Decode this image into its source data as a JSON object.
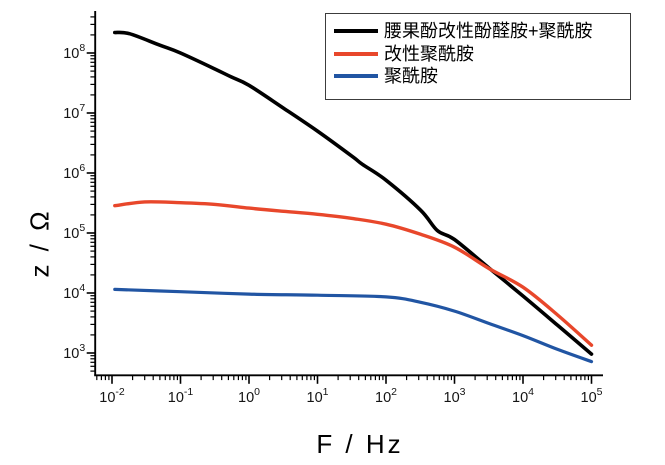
{
  "chart_data": {
    "type": "line",
    "title": "",
    "xlabel": "F / Hz",
    "ylabel": "z / Ω",
    "x_scale": "log",
    "y_scale": "log",
    "x_range_exp": [
      -2.24,
      5.16
    ],
    "y_range_exp": [
      2.64,
      8.67
    ],
    "x_major_ticks_exp": [
      -2,
      -1,
      0,
      1,
      2,
      3,
      4,
      5
    ],
    "y_major_ticks_exp": [
      3,
      4,
      5,
      6,
      7,
      8
    ],
    "grid": false,
    "legend_position": "top-right",
    "series": [
      {
        "name": "腰果酚改性酚醛胺+聚酰胺",
        "color": "#000000",
        "points": [
          [
            0.011,
            220000000.0
          ],
          [
            0.018,
            210000000.0
          ],
          [
            0.05,
            135000000.0
          ],
          [
            0.1,
            100000000.0
          ],
          [
            0.32,
            54000000.0
          ],
          [
            0.55,
            40000000.0
          ],
          [
            1,
            29000000.0
          ],
          [
            3.2,
            12000000.0
          ],
          [
            10,
            5000000.0
          ],
          [
            32,
            1900000.0
          ],
          [
            45,
            1400000.0
          ],
          [
            100,
            760000.0
          ],
          [
            320,
            240000.0
          ],
          [
            560,
            110000.0
          ],
          [
            1000,
            78000.0
          ],
          [
            3200,
            26000.0
          ],
          [
            10000,
            8900.0
          ],
          [
            32000,
            2900.0
          ],
          [
            100000,
            960.0
          ]
        ]
      },
      {
        "name": "改性聚酰胺",
        "color": "#e8472b",
        "points": [
          [
            0.011,
            285000.0
          ],
          [
            0.03,
            330000.0
          ],
          [
            0.1,
            320000.0
          ],
          [
            0.32,
            300000.0
          ],
          [
            1,
            260000.0
          ],
          [
            3.2,
            230000.0
          ],
          [
            10,
            205000.0
          ],
          [
            32,
            175000.0
          ],
          [
            100,
            140000.0
          ],
          [
            320,
            95000.0
          ],
          [
            1000,
            58000.0
          ],
          [
            3200,
            25500.0
          ],
          [
            10000,
            12500.0
          ],
          [
            32000,
            4300.0
          ],
          [
            100000,
            1350.0
          ]
        ]
      },
      {
        "name": "聚酰胺",
        "color": "#2155a3",
        "points": [
          [
            0.011,
            11500.0
          ],
          [
            0.1,
            10500.0
          ],
          [
            1,
            9600.0
          ],
          [
            10,
            9200.0
          ],
          [
            100,
            8600.0
          ],
          [
            320,
            7000.0
          ],
          [
            1000,
            5000.0
          ],
          [
            3200,
            3100.0
          ],
          [
            10000,
            1950.0
          ],
          [
            32000,
            1150.0
          ],
          [
            100000,
            720.0
          ]
        ]
      }
    ]
  }
}
